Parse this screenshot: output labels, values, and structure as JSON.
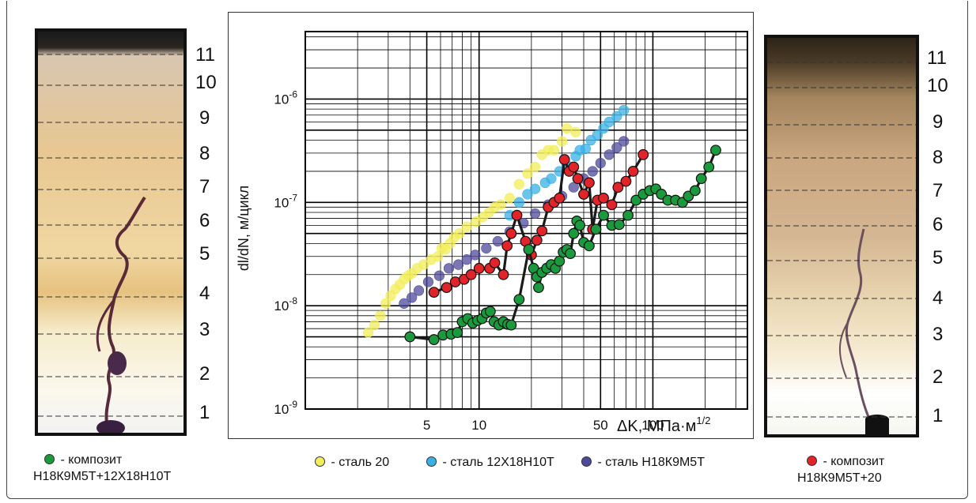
{
  "left_photo": {
    "scale_labels": [
      "11",
      "10",
      "9",
      "8",
      "7",
      "6",
      "5",
      "4",
      "3",
      "2",
      "1"
    ]
  },
  "right_photo": {
    "scale_labels": [
      "11",
      "10",
      "9",
      "8",
      "7",
      "6",
      "5",
      "4",
      "3",
      "2",
      "1"
    ]
  },
  "legend": {
    "green": {
      "text_line1": "- композит",
      "text_line2": "Н18К9М5Т+12Х18Н10Т",
      "color": "#1a9a3c"
    },
    "yellow": {
      "text": "- сталь 20",
      "color": "#f2ee5a"
    },
    "cyan": {
      "text": "- сталь 12Х18Н10Т",
      "color": "#3ab0e6"
    },
    "purple": {
      "text": "- сталь Н18К9М5Т",
      "color": "#4d4a9a"
    },
    "red": {
      "text_line1": "- композит",
      "text_line2": "Н18К9М5Т+20",
      "color": "#e0242a"
    }
  },
  "chart_data": {
    "type": "scatter",
    "x_scale": "log",
    "y_scale": "log",
    "xlim": [
      1,
      350
    ],
    "ylim": [
      1e-09,
      4.5e-06
    ],
    "ylabel": "dl/dN, м/цикл",
    "xlabel": "ΔK, МПа·м^1/2",
    "x_tick_labels": [
      "5",
      "10",
      "50",
      "100"
    ],
    "x_ticks": [
      5,
      10,
      50,
      100
    ],
    "y_tick_labels": [
      {
        "mantissa": "10",
        "exp": "-9",
        "value": 1e-09
      },
      {
        "mantissa": "10",
        "exp": "-8",
        "value": 1e-08
      },
      {
        "mantissa": "10",
        "exp": "-7",
        "value": 1e-07
      },
      {
        "mantissa": "10",
        "exp": "-6",
        "value": 1e-06
      }
    ],
    "grid": true,
    "series": [
      {
        "legend_key": "yellow",
        "color": "#f2ee5a",
        "connected": false,
        "points": [
          [
            2.3,
            5.5e-09
          ],
          [
            2.5,
            6.5e-09
          ],
          [
            2.7,
            8e-09
          ],
          [
            2.9,
            1.05e-08
          ],
          [
            3.1,
            1.25e-08
          ],
          [
            3.3,
            1.45e-08
          ],
          [
            3.5,
            1.6e-08
          ],
          [
            3.7,
            1.8e-08
          ],
          [
            3.9,
            1.95e-08
          ],
          [
            4.1,
            2.05e-08
          ],
          [
            4.4,
            2.3e-08
          ],
          [
            4.8,
            2.5e-08
          ],
          [
            5.3,
            2.8e-08
          ],
          [
            5.8,
            3e-08
          ],
          [
            6.1,
            3.6e-08
          ],
          [
            6.4,
            3.5e-08
          ],
          [
            6.8,
            4e-08
          ],
          [
            7.2,
            4.6e-08
          ],
          [
            7.7,
            5e-08
          ],
          [
            8.5,
            5.8e-08
          ],
          [
            9.6,
            6.5e-08
          ],
          [
            10.5,
            7.2e-08
          ],
          [
            11.4,
            8e-08
          ],
          [
            12.3,
            9e-08
          ],
          [
            13.3,
            9.5e-08
          ],
          [
            15,
            1.1e-07
          ],
          [
            17,
            1.5e-07
          ],
          [
            19,
            1.9e-07
          ],
          [
            21,
            2.2e-07
          ],
          [
            23,
            2.9e-07
          ],
          [
            25,
            3.2e-07
          ],
          [
            27,
            3.2e-07
          ],
          [
            30,
            3.9e-07
          ],
          [
            32,
            5.2e-07
          ],
          [
            36,
            4.8e-07
          ]
        ]
      },
      {
        "legend_key": "cyan",
        "color": "#3ab0e6",
        "connected": false,
        "points": [
          [
            15,
            7.5e-08
          ],
          [
            17,
            1e-07
          ],
          [
            19,
            1.2e-07
          ],
          [
            21,
            1.35e-07
          ],
          [
            24,
            1.55e-07
          ],
          [
            26,
            1.7e-07
          ],
          [
            29,
            2e-07
          ],
          [
            32,
            2.3e-07
          ],
          [
            36,
            2.8e-07
          ],
          [
            38,
            3.2e-07
          ],
          [
            41,
            3.3e-07
          ],
          [
            44,
            4e-07
          ],
          [
            48,
            4.5e-07
          ],
          [
            52,
            5.2e-07
          ],
          [
            56,
            6e-07
          ],
          [
            62,
            6.8e-07
          ],
          [
            68,
            7.8e-07
          ]
        ]
      },
      {
        "legend_key": "purple",
        "color": "#4d4a9a",
        "connected": false,
        "points": [
          [
            3.7,
            1.05e-08
          ],
          [
            4.1,
            1.2e-08
          ],
          [
            4.5,
            1.4e-08
          ],
          [
            5.1,
            1.7e-08
          ],
          [
            5.9,
            1.95e-08
          ],
          [
            6.7,
            2.3e-08
          ],
          [
            7.6,
            2.5e-08
          ],
          [
            8.5,
            2.8e-08
          ],
          [
            9.5,
            3.1e-08
          ],
          [
            11,
            3.6e-08
          ],
          [
            12.8,
            4.2e-08
          ],
          [
            15,
            5.2e-08
          ],
          [
            18,
            6.3e-08
          ],
          [
            21,
            7.8e-08
          ],
          [
            25,
            9.5e-08
          ],
          [
            30,
            1.15e-07
          ],
          [
            35,
            1.4e-07
          ],
          [
            40,
            1.7e-07
          ],
          [
            45,
            2e-07
          ],
          [
            50,
            2.4e-07
          ],
          [
            56,
            2.9e-07
          ],
          [
            62,
            3.4e-07
          ],
          [
            68,
            3.9e-07
          ]
        ]
      },
      {
        "legend_key": "red",
        "color": "#e0242a",
        "connected": true,
        "points": [
          [
            5.5,
            1.35e-08
          ],
          [
            6.5,
            1.5e-08
          ],
          [
            7.3,
            1.7e-08
          ],
          [
            8.2,
            1.8e-08
          ],
          [
            9,
            2e-08
          ],
          [
            10,
            2.3e-08
          ],
          [
            11.5,
            2.3e-08
          ],
          [
            12.3,
            2.6e-08
          ],
          [
            13.8,
            2e-08
          ],
          [
            14.5,
            3.8e-08
          ],
          [
            15.3,
            5e-08
          ],
          [
            16.5,
            7.5e-08
          ],
          [
            18.5,
            4.2e-08
          ],
          [
            20,
            3.1e-08
          ],
          [
            21.5,
            4.3e-08
          ],
          [
            23,
            5.3e-08
          ],
          [
            25,
            9e-08
          ],
          [
            27,
            1e-07
          ],
          [
            29,
            1.1e-07
          ],
          [
            31,
            2.6e-07
          ],
          [
            33,
            2e-07
          ],
          [
            35,
            2.2e-07
          ],
          [
            37,
            1.7e-07
          ],
          [
            40,
            1.2e-07
          ],
          [
            43,
            1.55e-07
          ],
          [
            45,
            5.5e-08
          ],
          [
            48,
            1.05e-07
          ],
          [
            52,
            1.1e-07
          ],
          [
            58,
            9.5e-08
          ],
          [
            63,
            1.4e-07
          ],
          [
            70,
            1.6e-07
          ],
          [
            77,
            2e-07
          ],
          [
            88,
            2.9e-07
          ]
        ]
      },
      {
        "legend_key": "green",
        "color": "#1a9a3c",
        "connected": true,
        "points": [
          [
            4,
            5e-09
          ],
          [
            5.5,
            4.7e-09
          ],
          [
            6.2,
            5.2e-09
          ],
          [
            6.9,
            5.3e-09
          ],
          [
            7.5,
            5.5e-09
          ],
          [
            8,
            7e-09
          ],
          [
            8.6,
            7.5e-09
          ],
          [
            9.2,
            6.8e-09
          ],
          [
            9.8,
            7.2e-09
          ],
          [
            10.4,
            7.5e-09
          ],
          [
            11,
            8.5e-09
          ],
          [
            11.6,
            8.8e-09
          ],
          [
            12.2,
            7e-09
          ],
          [
            13,
            6.5e-09
          ],
          [
            13.8,
            7e-09
          ],
          [
            14.6,
            6.6e-09
          ],
          [
            15.3,
            6.5e-09
          ],
          [
            17,
            1.15e-08
          ],
          [
            19.3,
            3.5e-08
          ],
          [
            20.6,
            2.3e-08
          ],
          [
            21.5,
            1.9e-08
          ],
          [
            22,
            1.5e-08
          ],
          [
            23,
            2.1e-08
          ],
          [
            24.5,
            2.3e-08
          ],
          [
            26,
            2.5e-08
          ],
          [
            27.5,
            2.3e-08
          ],
          [
            29,
            2.7e-08
          ],
          [
            30.5,
            3.3e-08
          ],
          [
            32,
            3.5e-08
          ],
          [
            33.5,
            3.2e-08
          ],
          [
            35,
            5e-08
          ],
          [
            36.5,
            6.6e-08
          ],
          [
            38,
            6e-08
          ],
          [
            40,
            4.1e-08
          ],
          [
            43,
            3.8e-08
          ],
          [
            47,
            5.5e-08
          ],
          [
            52,
            7.5e-08
          ],
          [
            58,
            6e-08
          ],
          [
            64,
            6.1e-08
          ],
          [
            72,
            7.5e-08
          ],
          [
            80,
            1.05e-07
          ],
          [
            88,
            1.2e-07
          ],
          [
            96,
            1.3e-07
          ],
          [
            104,
            1.35e-07
          ],
          [
            112,
            1.2e-07
          ],
          [
            122,
            1.05e-07
          ],
          [
            135,
            1.05e-07
          ],
          [
            148,
            1e-07
          ],
          [
            160,
            1.15e-07
          ],
          [
            175,
            1.3e-07
          ],
          [
            190,
            1.7e-07
          ],
          [
            210,
            2.2e-07
          ],
          [
            230,
            3.2e-07
          ]
        ]
      }
    ]
  }
}
